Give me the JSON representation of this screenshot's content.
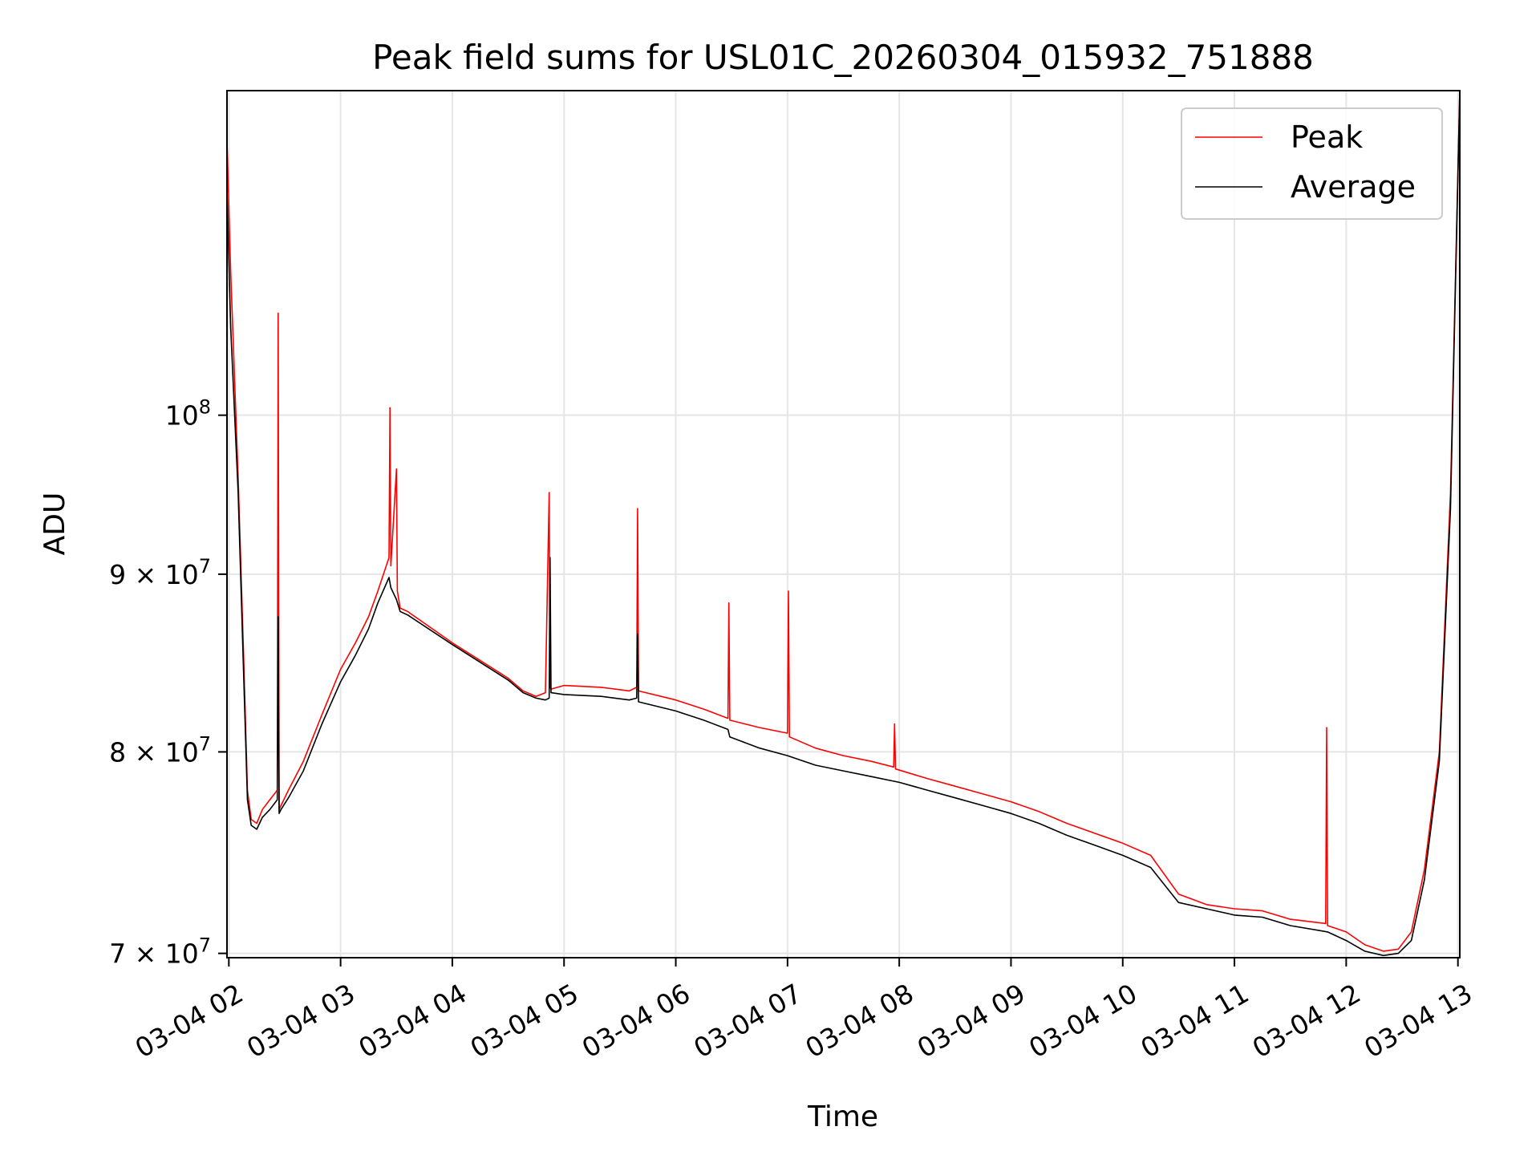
{
  "chart_data": {
    "type": "line",
    "title": "Peak field sums for USL01C_20260304_015932_751888",
    "xlabel": "Time",
    "ylabel": "ADU",
    "yscale": "log",
    "grid": true,
    "legend_position": "top-right",
    "xlim": [
      "03-04 01:59",
      "03-04 13:01"
    ],
    "ylim": [
      69800000,
      124000000
    ],
    "x_ticks": [
      {
        "value": "03-04 02:00",
        "label": "03-04 02"
      },
      {
        "value": "03-04 03:00",
        "label": "03-04 03"
      },
      {
        "value": "03-04 04:00",
        "label": "03-04 04"
      },
      {
        "value": "03-04 05:00",
        "label": "03-04 05"
      },
      {
        "value": "03-04 06:00",
        "label": "03-04 06"
      },
      {
        "value": "03-04 07:00",
        "label": "03-04 07"
      },
      {
        "value": "03-04 08:00",
        "label": "03-04 08"
      },
      {
        "value": "03-04 09:00",
        "label": "03-04 09"
      },
      {
        "value": "03-04 10:00",
        "label": "03-04 10"
      },
      {
        "value": "03-04 11:00",
        "label": "03-04 11"
      },
      {
        "value": "03-04 12:00",
        "label": "03-04 12"
      },
      {
        "value": "03-04 13:00",
        "label": "03-04 13"
      }
    ],
    "y_ticks": [
      {
        "value": 70000000,
        "base": "7 × 10",
        "exp": "7"
      },
      {
        "value": 80000000,
        "base": "8 × 10",
        "exp": "7"
      },
      {
        "value": 90000000,
        "base": "9 × 10",
        "exp": "7"
      },
      {
        "value": 100000000,
        "base": "10",
        "exp": "8"
      }
    ],
    "series": [
      {
        "name": "Peak",
        "color": "#ff0000",
        "x": [
          "03-04 01:59",
          "03-04 02:01",
          "03-04 02:05",
          "03-04 02:08",
          "03-04 02:10",
          "03-04 02:12",
          "03-04 02:15",
          "03-04 02:18",
          "03-04 02:22",
          "03-04 02:26",
          "03-04 02:26:30",
          "03-04 02:27",
          "03-04 02:28",
          "03-04 02:32",
          "03-04 02:40",
          "03-04 02:50",
          "03-04 03:00",
          "03-04 03:08",
          "03-04 03:15",
          "03-04 03:20",
          "03-04 03:26",
          "03-04 03:26:30",
          "03-04 03:27",
          "03-04 03:30",
          "03-04 03:30:30",
          "03-04 03:32",
          "03-04 03:36",
          "03-04 04:00",
          "03-04 04:30",
          "03-04 04:38",
          "03-04 04:45",
          "03-04 04:50",
          "03-04 04:52",
          "03-04 04:52:30",
          "03-04 04:53",
          "03-04 05:00",
          "03-04 05:20",
          "03-04 05:35",
          "03-04 05:39",
          "03-04 05:39:30",
          "03-04 05:40",
          "03-04 06:00",
          "03-04 06:15",
          "03-04 06:28",
          "03-04 06:28:30",
          "03-04 06:29",
          "03-04 06:45",
          "03-04 07:00",
          "03-04 07:00:30",
          "03-04 07:01",
          "03-04 07:15",
          "03-04 07:30",
          "03-04 07:45",
          "03-04 07:57",
          "03-04 07:57:30",
          "03-04 07:58",
          "03-04 08:15",
          "03-04 08:30",
          "03-04 08:45",
          "03-04 09:00",
          "03-04 09:15",
          "03-04 09:30",
          "03-04 09:45",
          "03-04 10:00",
          "03-04 10:15",
          "03-04 10:30",
          "03-04 10:45",
          "03-04 11:00",
          "03-04 11:15",
          "03-04 11:30",
          "03-04 11:49",
          "03-04 11:49:30",
          "03-04 11:50",
          "03-04 12:00",
          "03-04 12:10",
          "03-04 12:20",
          "03-04 12:28",
          "03-04 12:35",
          "03-04 12:42",
          "03-04 12:50",
          "03-04 12:56",
          "03-04 13:01"
        ],
        "y": [
          120000000,
          110000000,
          96000000,
          85000000,
          78000000,
          76500000,
          76300000,
          77000000,
          77500000,
          78000000,
          107000000,
          77000000,
          77200000,
          78000000,
          79500000,
          82000000,
          84500000,
          86000000,
          87500000,
          89000000,
          91000000,
          100500000,
          90500000,
          96500000,
          89000000,
          88000000,
          87800000,
          86000000,
          84000000,
          83300000,
          83000000,
          83200000,
          95000000,
          83500000,
          83400000,
          83600000,
          83500000,
          83300000,
          83500000,
          94000000,
          83300000,
          82800000,
          82300000,
          81800000,
          88300000,
          81700000,
          81300000,
          81000000,
          89000000,
          80800000,
          80200000,
          79800000,
          79500000,
          79200000,
          81500000,
          79100000,
          78600000,
          78200000,
          77800000,
          77400000,
          76900000,
          76300000,
          75800000,
          75300000,
          74700000,
          72800000,
          72300000,
          72100000,
          72000000,
          71600000,
          71400000,
          81300000,
          71300000,
          71000000,
          70400000,
          70100000,
          70200000,
          71000000,
          74000000,
          80000000,
          95000000,
          124000000
        ]
      },
      {
        "name": "Average",
        "color": "#000000",
        "x": [
          "03-04 01:59",
          "03-04 02:01",
          "03-04 02:05",
          "03-04 02:08",
          "03-04 02:10",
          "03-04 02:12",
          "03-04 02:15",
          "03-04 02:18",
          "03-04 02:22",
          "03-04 02:26",
          "03-04 02:26:30",
          "03-04 02:27",
          "03-04 02:28",
          "03-04 02:32",
          "03-04 02:40",
          "03-04 02:50",
          "03-04 03:00",
          "03-04 03:08",
          "03-04 03:15",
          "03-04 03:20",
          "03-04 03:26",
          "03-04 03:27",
          "03-04 03:30",
          "03-04 03:32",
          "03-04 03:36",
          "03-04 04:00",
          "03-04 04:30",
          "03-04 04:38",
          "03-04 04:45",
          "03-04 04:50",
          "03-04 04:52",
          "03-04 04:52:30",
          "03-04 04:53",
          "03-04 05:00",
          "03-04 05:20",
          "03-04 05:35",
          "03-04 05:39",
          "03-04 05:39:30",
          "03-04 05:40",
          "03-04 06:00",
          "03-04 06:15",
          "03-04 06:28",
          "03-04 06:29",
          "03-04 06:45",
          "03-04 07:00",
          "03-04 07:15",
          "03-04 07:30",
          "03-04 07:45",
          "03-04 08:00",
          "03-04 08:15",
          "03-04 08:30",
          "03-04 08:45",
          "03-04 09:00",
          "03-04 09:15",
          "03-04 09:30",
          "03-04 09:45",
          "03-04 10:00",
          "03-04 10:15",
          "03-04 10:30",
          "03-04 10:45",
          "03-04 11:00",
          "03-04 11:15",
          "03-04 11:30",
          "03-04 11:50",
          "03-04 12:00",
          "03-04 12:10",
          "03-04 12:20",
          "03-04 12:28",
          "03-04 12:35",
          "03-04 12:42",
          "03-04 12:50",
          "03-04 12:56",
          "03-04 13:01"
        ],
        "y": [
          116000000,
          106000000,
          95000000,
          84000000,
          77500000,
          76200000,
          76000000,
          76600000,
          77000000,
          77500000,
          87500000,
          76800000,
          77000000,
          77600000,
          79000000,
          81500000,
          83800000,
          85300000,
          86800000,
          88300000,
          89800000,
          89200000,
          88500000,
          87800000,
          87600000,
          85900000,
          83900000,
          83200000,
          82900000,
          82800000,
          82900000,
          91000000,
          83200000,
          83100000,
          83000000,
          82800000,
          82900000,
          86500000,
          82700000,
          82200000,
          81700000,
          81200000,
          80800000,
          80200000,
          79800000,
          79300000,
          79000000,
          78700000,
          78400000,
          78000000,
          77600000,
          77200000,
          76800000,
          76300000,
          75700000,
          75200000,
          74700000,
          74100000,
          72400000,
          72100000,
          71800000,
          71700000,
          71300000,
          71000000,
          70600000,
          70100000,
          69900000,
          70000000,
          70600000,
          73500000,
          79500000,
          94000000,
          124000000
        ]
      }
    ]
  }
}
